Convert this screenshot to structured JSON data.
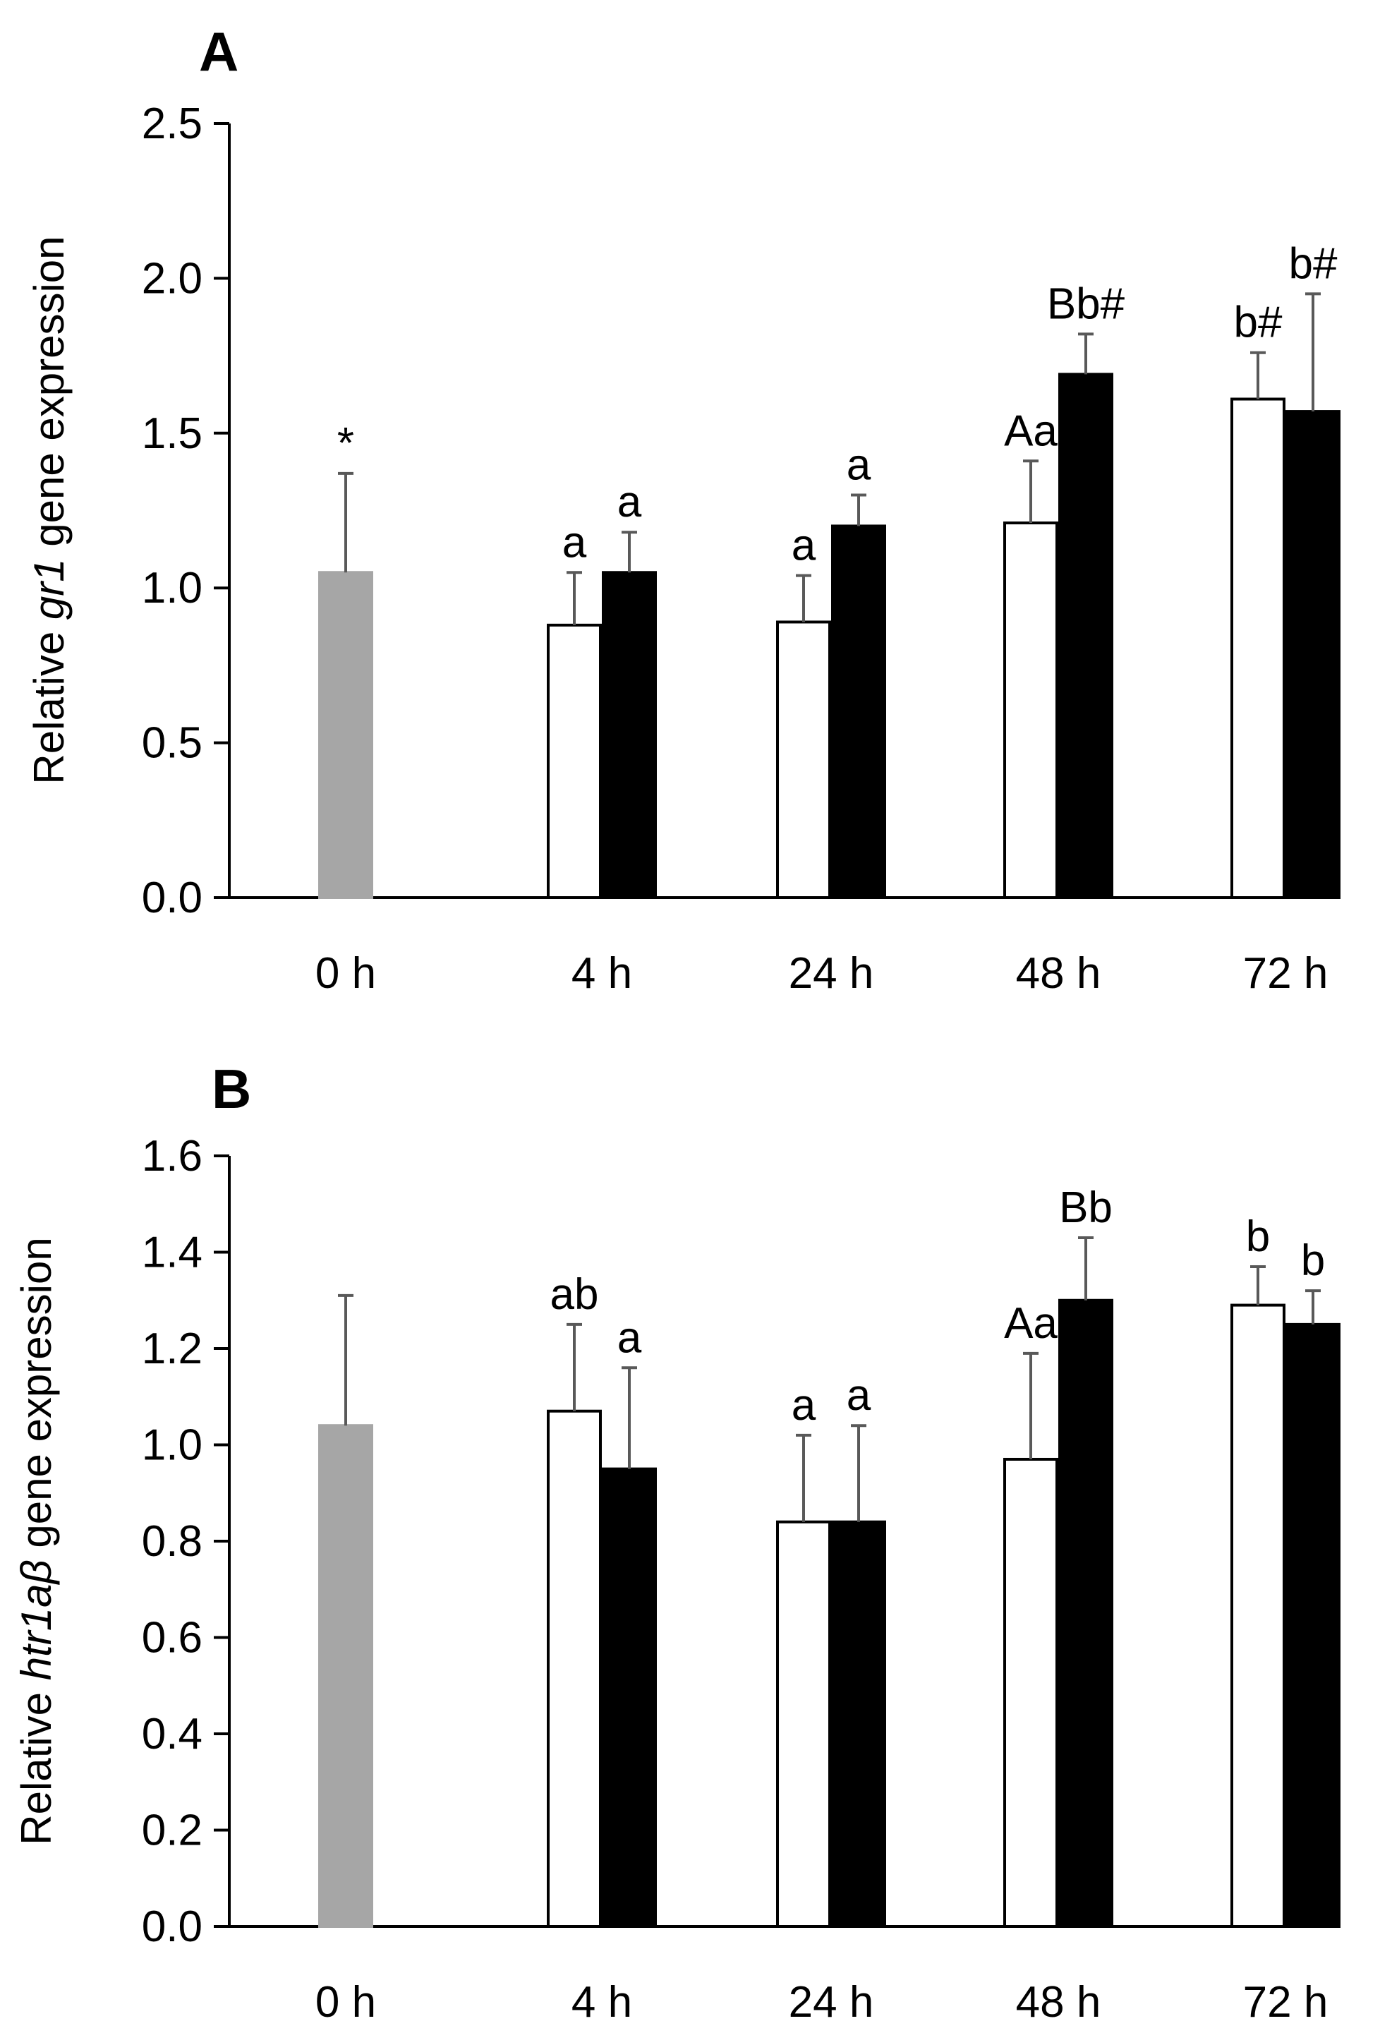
{
  "colors": {
    "control": "#a6a6a6",
    "series1": "#ffffff",
    "series2": "#000000",
    "errorbar": "#595959",
    "axis": "#000000"
  },
  "chart_data": [
    {
      "panel": "A",
      "type": "bar",
      "ylabel": {
        "prefix": "Relative ",
        "gene": "gr1",
        "suffix": " gene expression"
      },
      "ylim": [
        0,
        2.5
      ],
      "yticks": [
        "0.0",
        "0.5",
        "1.0",
        "1.5",
        "2.0",
        "2.5"
      ],
      "categories": [
        "0 h",
        "4 h",
        "24 h",
        "48 h",
        "72 h"
      ],
      "control": {
        "category": "0 h",
        "value": 1.05,
        "error": 0.32,
        "label": "*"
      },
      "series": [
        {
          "name": "series 1 (white)",
          "values": [
            null,
            0.88,
            0.89,
            1.21,
            1.61
          ],
          "errors": [
            null,
            0.17,
            0.15,
            0.2,
            0.15
          ],
          "labels": [
            "",
            "a",
            "a",
            "Aa",
            "b#"
          ]
        },
        {
          "name": "series 2 (black)",
          "values": [
            null,
            1.05,
            1.2,
            1.69,
            1.57
          ],
          "errors": [
            null,
            0.13,
            0.1,
            0.13,
            0.38
          ],
          "labels": [
            "",
            "a",
            "a",
            "Bb#",
            "b#"
          ]
        }
      ]
    },
    {
      "panel": "B",
      "type": "bar",
      "ylabel": {
        "prefix": "Relative ",
        "gene": "htr1aβ",
        "suffix": " gene expression"
      },
      "ylim": [
        0,
        1.6
      ],
      "yticks": [
        "0.0",
        "0.2",
        "0.4",
        "0.6",
        "0.8",
        "1.0",
        "1.2",
        "1.4",
        "1.6"
      ],
      "categories": [
        "0 h",
        "4 h",
        "24 h",
        "48 h",
        "72 h"
      ],
      "control": {
        "category": "0 h",
        "value": 1.04,
        "error": 0.27,
        "label": ""
      },
      "series": [
        {
          "name": "series 1 (white)",
          "values": [
            null,
            1.07,
            0.84,
            0.97,
            1.29
          ],
          "errors": [
            null,
            0.18,
            0.18,
            0.22,
            0.08
          ],
          "labels": [
            "",
            "ab",
            "a",
            "Aa",
            "b"
          ]
        },
        {
          "name": "series 2 (black)",
          "values": [
            null,
            0.95,
            0.84,
            1.3,
            1.25
          ],
          "errors": [
            null,
            0.21,
            0.2,
            0.13,
            0.07
          ],
          "labels": [
            "",
            "a",
            "a",
            "Bb",
            "b"
          ]
        }
      ]
    }
  ]
}
